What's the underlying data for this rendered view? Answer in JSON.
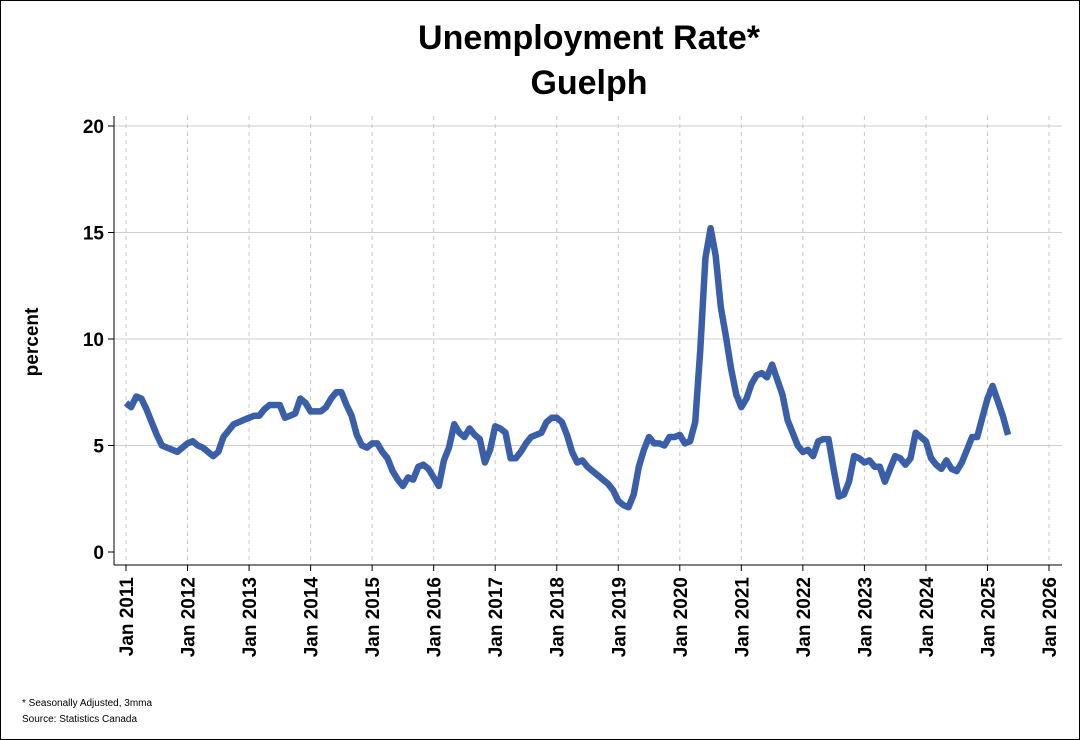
{
  "chart_data": {
    "type": "line",
    "title": "Unemployment Rate*",
    "subtitle": "Guelph",
    "ylabel": "percent",
    "xlabel": "",
    "ylim": [
      0,
      20
    ],
    "yticks": [
      0,
      5,
      10,
      15,
      20
    ],
    "xlim": [
      2011,
      2026
    ],
    "xticks": [
      2011,
      2012,
      2013,
      2014,
      2015,
      2016,
      2017,
      2018,
      2019,
      2020,
      2021,
      2022,
      2023,
      2024,
      2025,
      2026
    ],
    "xtick_labels": [
      "Jan 2011",
      "Jan 2012",
      "Jan 2013",
      "Jan 2014",
      "Jan 2015",
      "Jan 2016",
      "Jan 2017",
      "Jan 2018",
      "Jan 2019",
      "Jan 2020",
      "Jan 2021",
      "Jan 2022",
      "Jan 2023",
      "Jan 2024",
      "Jan 2025",
      "Jan 2026"
    ],
    "grid": {
      "horizontal": "solid",
      "vertical": "dashed"
    },
    "line_color": "#3a5fa8",
    "series": [
      {
        "name": "Unemployment Rate (Guelph)",
        "start": "Jan 2011",
        "frequency": "monthly",
        "values": [
          7.0,
          6.8,
          7.3,
          7.2,
          6.7,
          6.1,
          5.5,
          5.0,
          4.9,
          4.8,
          4.7,
          4.9,
          5.1,
          5.2,
          5.0,
          4.9,
          4.7,
          4.5,
          4.7,
          5.4,
          5.7,
          6.0,
          6.1,
          6.2,
          6.3,
          6.4,
          6.4,
          6.7,
          6.9,
          6.9,
          6.9,
          6.3,
          6.4,
          6.5,
          7.2,
          7.0,
          6.6,
          6.6,
          6.6,
          6.8,
          7.2,
          7.5,
          7.5,
          6.9,
          6.4,
          5.5,
          5.0,
          4.9,
          5.1,
          5.1,
          4.7,
          4.4,
          3.8,
          3.4,
          3.1,
          3.5,
          3.4,
          4.0,
          4.1,
          3.9,
          3.5,
          3.1,
          4.3,
          4.9,
          6.0,
          5.6,
          5.4,
          5.8,
          5.5,
          5.3,
          4.2,
          4.8,
          5.9,
          5.8,
          5.6,
          4.4,
          4.4,
          4.7,
          5.1,
          5.4,
          5.5,
          5.6,
          6.1,
          6.3,
          6.3,
          6.1,
          5.5,
          4.7,
          4.2,
          4.3,
          4.0,
          3.8,
          3.6,
          3.4,
          3.2,
          2.9,
          2.4,
          2.2,
          2.1,
          2.7,
          4.0,
          4.8,
          5.4,
          5.1,
          5.1,
          5.0,
          5.4,
          5.4,
          5.5,
          5.1,
          5.2,
          6.1,
          9.5,
          13.8,
          15.2,
          13.9,
          11.5,
          10.1,
          8.6,
          7.4,
          6.8,
          7.2,
          7.9,
          8.3,
          8.4,
          8.2,
          8.8,
          8.1,
          7.4,
          6.2,
          5.6,
          5.0,
          4.7,
          4.8,
          4.5,
          5.2,
          5.3,
          5.3,
          3.9,
          2.6,
          2.7,
          3.3,
          4.5,
          4.4,
          4.2,
          4.3,
          4.0,
          4.0,
          3.3,
          3.9,
          4.5,
          4.4,
          4.1,
          4.4,
          5.6,
          5.4,
          5.2,
          4.4,
          4.1,
          3.9,
          4.3,
          3.9,
          3.8,
          4.2,
          4.8,
          5.4,
          5.4,
          6.3,
          7.2,
          7.8,
          7.1,
          6.4,
          5.5
        ]
      }
    ]
  },
  "footnote": {
    "line1": "* Seasonally Adjusted, 3mma",
    "line2": "Source: Statistics Canada"
  }
}
